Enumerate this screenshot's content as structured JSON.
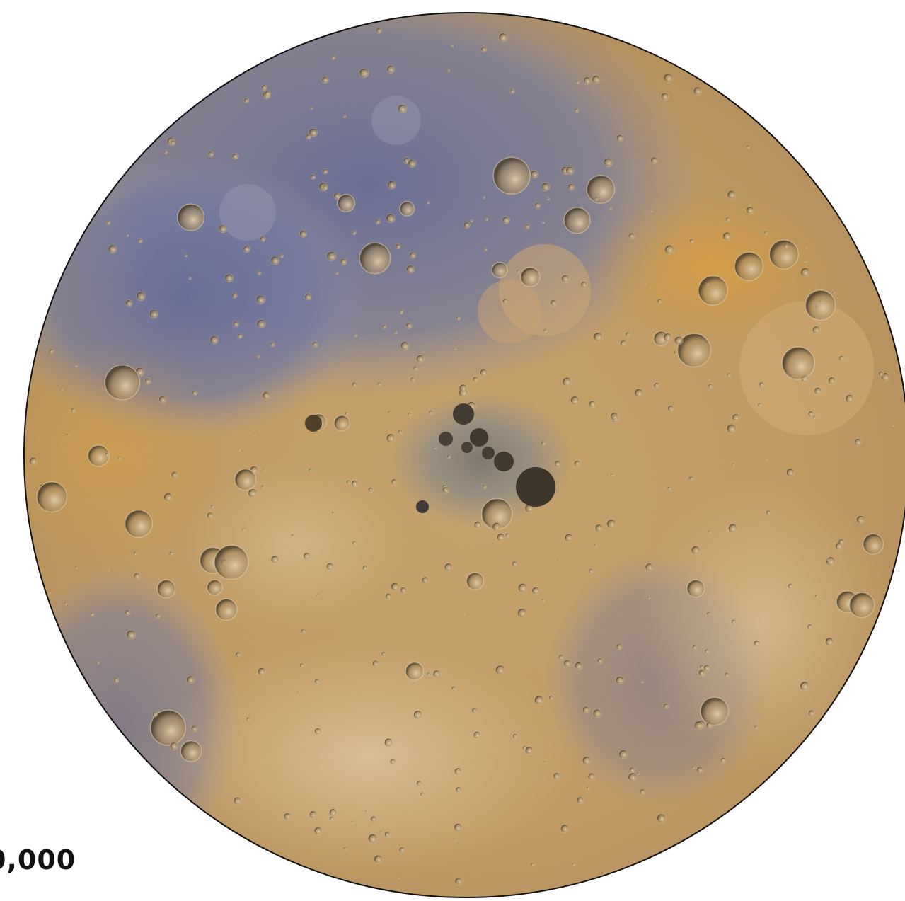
{
  "map": {
    "scale_text": "0,000",
    "colors": {
      "background": "#ffffff",
      "outline": "#111111",
      "base_tan": "#c9a66e",
      "light_tan": "#e0c596",
      "blue_region": "#5d6fb0",
      "deep_blue": "#3a4a9a",
      "orange_region": "#d9962e",
      "polar_gray": "#8a8a8a",
      "crater_shadow": "#2a2418",
      "crater_rim": "#f3e3c0"
    }
  }
}
